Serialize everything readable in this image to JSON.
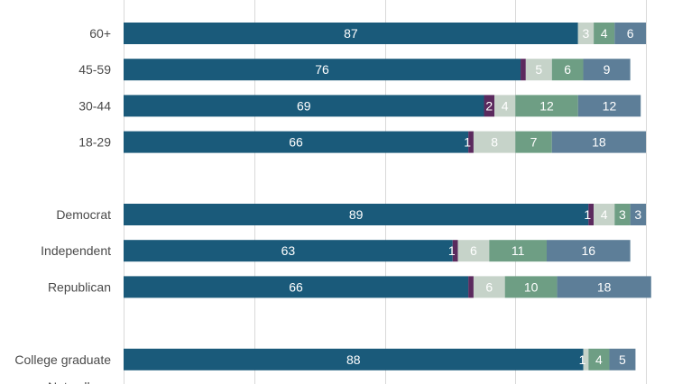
{
  "chart_data": {
    "type": "bar",
    "orientation": "horizontal",
    "stacked": true,
    "grid": true,
    "xlim": [
      0,
      100
    ],
    "xticks": [
      0,
      25,
      50,
      75,
      100
    ],
    "categories": [
      "60+",
      "45-59",
      "30-44",
      "18-29",
      "Democrat",
      "Independent",
      "Republican",
      "College graduate"
    ],
    "group_starts": [
      0,
      4,
      7
    ],
    "series": [
      {
        "color": "#1a5a7a",
        "values": [
          87,
          76,
          69,
          66,
          89,
          63,
          66,
          88
        ]
      },
      {
        "color": "#5b2a5e",
        "values": [
          0,
          1,
          2,
          1,
          1,
          1,
          1,
          0
        ]
      },
      {
        "color": "#c6d3c9",
        "values": [
          3,
          5,
          4,
          8,
          4,
          6,
          6,
          1
        ]
      },
      {
        "color": "#6e9e84",
        "values": [
          4,
          6,
          12,
          7,
          3,
          11,
          10,
          4
        ]
      },
      {
        "color": "#5d7e98",
        "values": [
          6,
          9,
          12,
          18,
          3,
          16,
          18,
          5
        ]
      }
    ],
    "labels": [
      [
        "87",
        "",
        "3",
        "4",
        "6"
      ],
      [
        "76",
        "",
        "5",
        "6",
        "9"
      ],
      [
        "69",
        "2",
        "4",
        "12",
        "12"
      ],
      [
        "66",
        "1",
        "8",
        "7",
        "18"
      ],
      [
        "89",
        "1",
        "4",
        "3",
        "3"
      ],
      [
        "63",
        "1",
        "6",
        "11",
        "16"
      ],
      [
        "66",
        "",
        "6",
        "10",
        "18"
      ],
      [
        "88",
        "",
        "1",
        "4",
        "5"
      ]
    ],
    "cut_off_label": "Not college"
  }
}
